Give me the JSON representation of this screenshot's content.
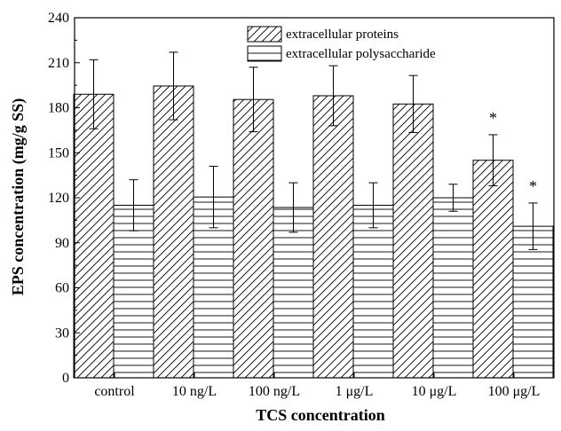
{
  "chart_data": {
    "type": "bar",
    "categories": [
      "control",
      "10 ng/L",
      "100 ng/L",
      "1 μg/L",
      "10 μg/L",
      "100 μg/L"
    ],
    "series": [
      {
        "name": "extracellular proteins",
        "values": [
          189,
          194.5,
          185.5,
          188,
          182.5,
          145
        ],
        "errors": [
          23,
          22.5,
          21.5,
          20,
          19,
          17
        ],
        "annotations": [
          "",
          "",
          "",
          "",
          "",
          "*"
        ],
        "pattern": "diagonal-hatch"
      },
      {
        "name": "extracellular polysaccharide",
        "values": [
          115,
          120.5,
          113.5,
          115,
          120,
          101
        ],
        "errors": [
          17,
          20.5,
          16.5,
          15,
          9,
          15.5
        ],
        "annotations": [
          "",
          "",
          "",
          "",
          "",
          "*"
        ],
        "pattern": "horizontal-lines"
      }
    ],
    "xlabel": "TCS concentration",
    "ylabel": "EPS concentration (mg/g SS)",
    "ylim": [
      0,
      240
    ],
    "yticks": [
      0,
      30,
      60,
      90,
      120,
      150,
      180,
      210,
      240
    ],
    "grid": false,
    "legend_position": "top-center"
  }
}
